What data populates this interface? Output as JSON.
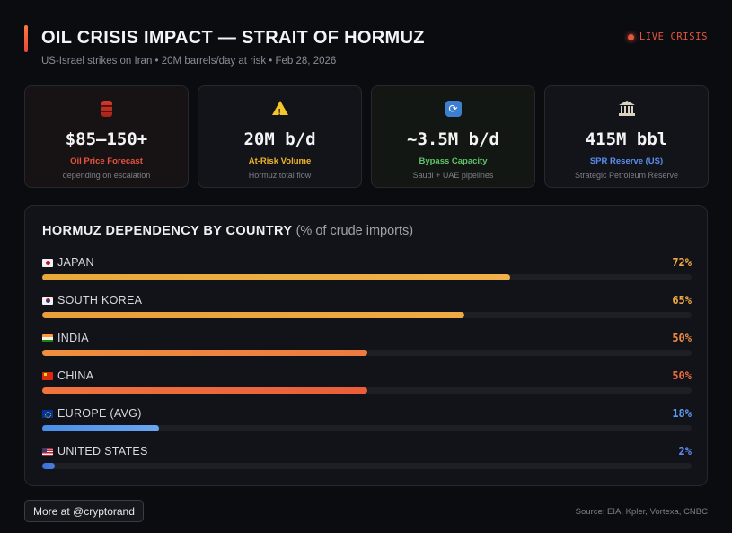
{
  "header": {
    "title": "OIL CRISIS IMPACT — STRAIT OF HORMUZ",
    "subtitle": "US-Israel strikes on Iran • 20M barrels/day at risk • Feb 28, 2026",
    "live_label": "LIVE CRISIS",
    "accent_color": "#e5553f"
  },
  "cards": [
    {
      "icon": "oil-barrel-icon",
      "value": "$85–150+",
      "label": "Oil Price Forecast",
      "note": "depending on escalation",
      "label_color": "#e8523e"
    },
    {
      "icon": "warning-icon",
      "value": "20M b/d",
      "label": "At-Risk Volume",
      "note": "Hormuz total flow",
      "label_color": "#f0b429"
    },
    {
      "icon": "bypass-cycle-icon",
      "value": "~3.5M b/d",
      "label": "Bypass Capacity",
      "note": "Saudi + UAE pipelines",
      "label_color": "#5fc46a"
    },
    {
      "icon": "bank-building-icon",
      "value": "415M bbl",
      "label": "SPR Reserve (US)",
      "note": "Strategic Petroleum Reserve",
      "label_color": "#5b8def"
    }
  ],
  "dependency": {
    "title": "HORMUZ DEPENDENCY BY COUNTRY",
    "subtitle": "(% of crude imports)",
    "rows": [
      {
        "flag": "jp",
        "name": "JAPAN",
        "pct_label": "72%",
        "value": 72,
        "color_from": "#e8a93a",
        "color_to": "#f0b14a",
        "pct_color": "#f0a845"
      },
      {
        "flag": "kr",
        "name": "SOUTH KOREA",
        "pct_label": "65%",
        "value": 65,
        "color_from": "#e89e3a",
        "color_to": "#eeaa45",
        "pct_color": "#f0a845"
      },
      {
        "flag": "in",
        "name": "INDIA",
        "pct_label": "50%",
        "value": 50,
        "color_from": "#ef8f3e",
        "color_to": "#ed7a40",
        "pct_color": "#f08a45"
      },
      {
        "flag": "cn",
        "name": "CHINA",
        "pct_label": "50%",
        "value": 50,
        "color_from": "#f0743c",
        "color_to": "#ea5e3a",
        "pct_color": "#ef6a40"
      },
      {
        "flag": "eu",
        "name": "EUROPE (AVG)",
        "pct_label": "18%",
        "value": 18,
        "color_from": "#4a8ee8",
        "color_to": "#6aa6f0",
        "pct_color": "#5b9cf0"
      },
      {
        "flag": "us",
        "name": "UNITED STATES",
        "pct_label": "2%",
        "value": 2,
        "color_from": "#3d6fd6",
        "color_to": "#4a7ee0",
        "pct_color": "#5b8def"
      }
    ]
  },
  "footer": {
    "more_button": "More at @cryptorand",
    "source": "Source: EIA, Kpler, Vortexa, CNBC"
  }
}
